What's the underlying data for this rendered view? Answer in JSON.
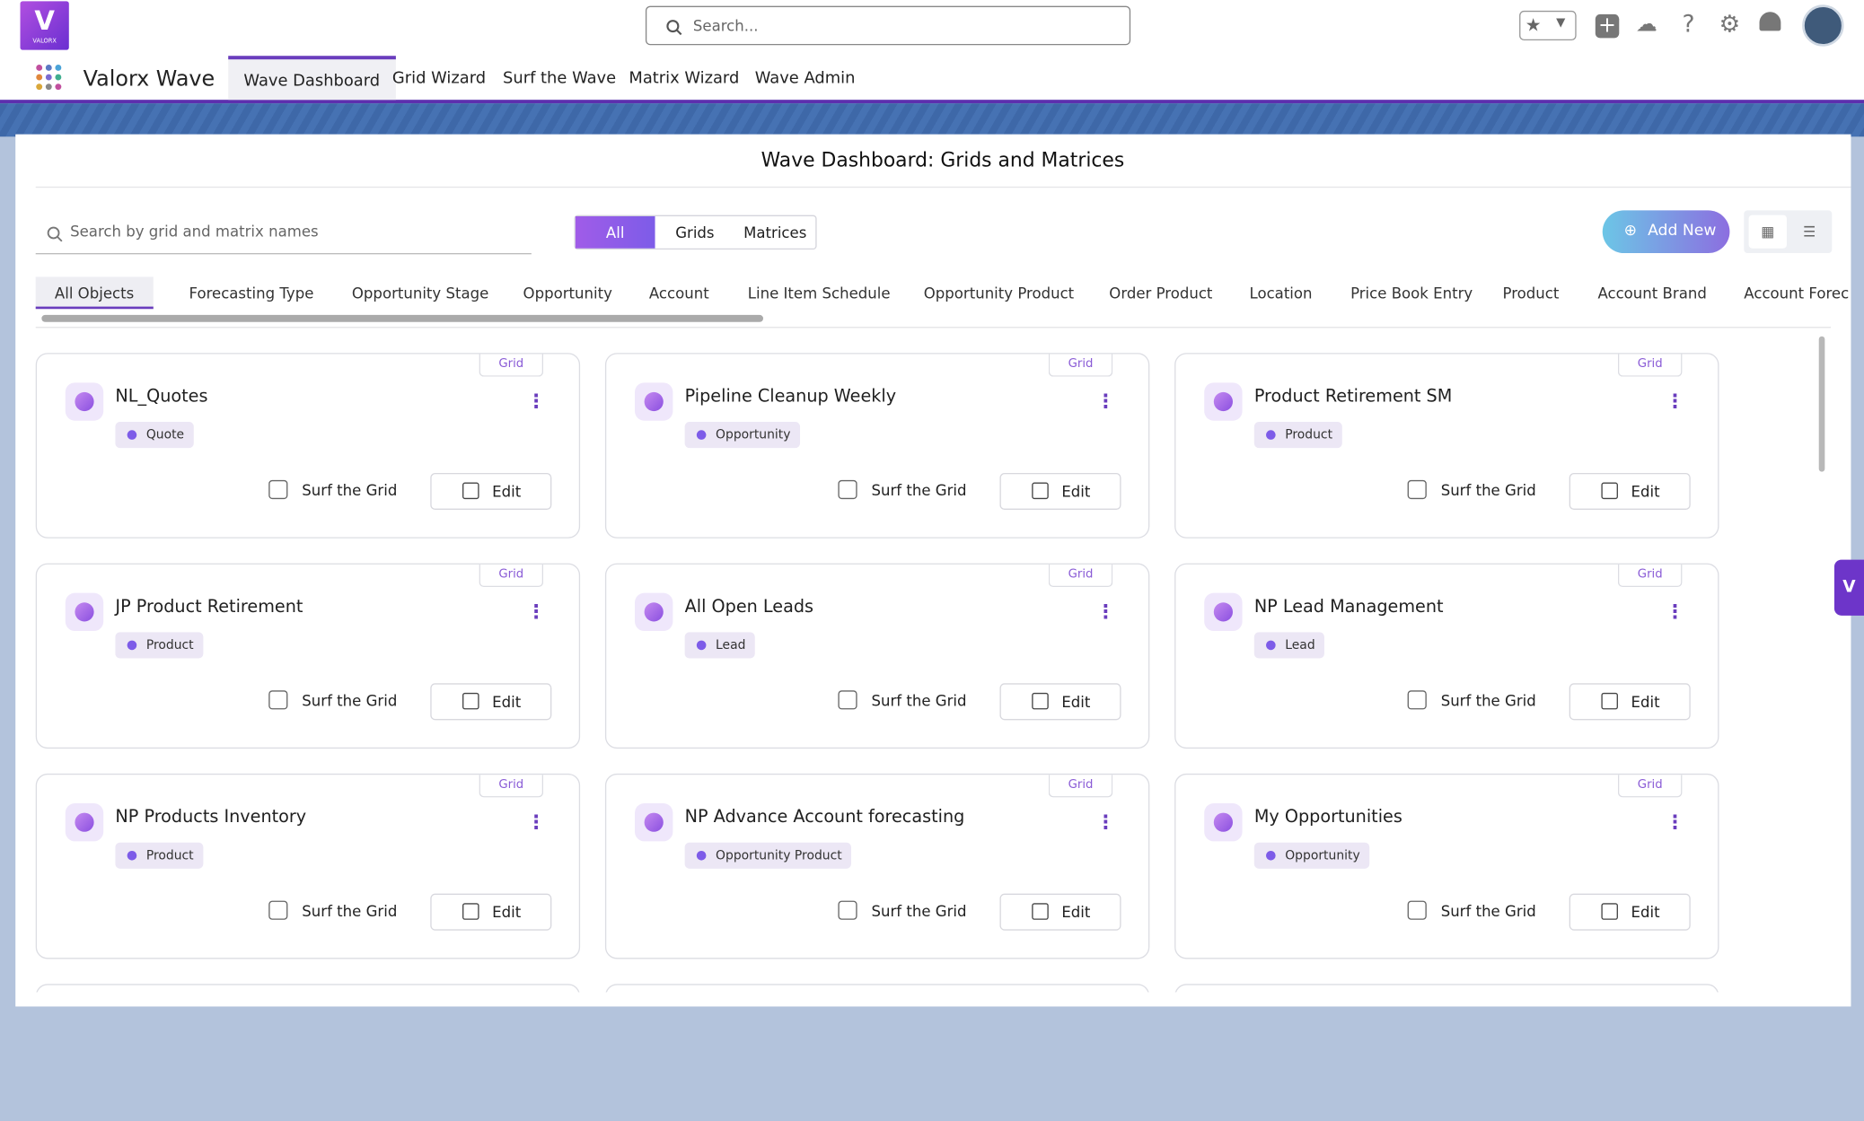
{
  "header": {
    "logo_text": "VALORX",
    "app_name": "Valorx Wave",
    "search_placeholder": "Search...",
    "nav_tabs": [
      "Wave Dashboard",
      "Grid Wizard",
      "Surf the Wave",
      "Matrix Wizard",
      "Wave Admin"
    ]
  },
  "dashboard": {
    "title": "Wave Dashboard: Grids and Matrices",
    "search_placeholder": "Search by grid and matrix names",
    "filters": [
      "All",
      "Grids",
      "Matrices"
    ],
    "add_new": "Add New",
    "object_tabs": [
      "All Objects",
      "Forecasting Type",
      "Opportunity Stage",
      "Opportunity",
      "Account",
      "Line Item Schedule",
      "Opportunity Product",
      "Order Product",
      "Location",
      "Price Book Entry",
      "Product",
      "Account Brand",
      "Account Forec"
    ],
    "card_actions": {
      "surf": "Surf the Grid",
      "edit": "Edit"
    },
    "cards": [
      {
        "title": "NL_Quotes",
        "object": "Quote",
        "type": "Grid"
      },
      {
        "title": "Pipeline Cleanup Weekly",
        "object": "Opportunity",
        "type": "Grid"
      },
      {
        "title": "Product Retirement SM",
        "object": "Product",
        "type": "Grid"
      },
      {
        "title": "JP Product Retirement",
        "object": "Product",
        "type": "Grid"
      },
      {
        "title": "All Open Leads",
        "object": "Lead",
        "type": "Grid"
      },
      {
        "title": "NP Lead Management",
        "object": "Lead",
        "type": "Grid"
      },
      {
        "title": "NP Products Inventory",
        "object": "Product",
        "type": "Grid"
      },
      {
        "title": "NP Advance Account forecasting",
        "object": "Opportunity Product",
        "type": "Grid"
      },
      {
        "title": "My Opportunities",
        "object": "Opportunity",
        "type": "Grid"
      }
    ]
  }
}
